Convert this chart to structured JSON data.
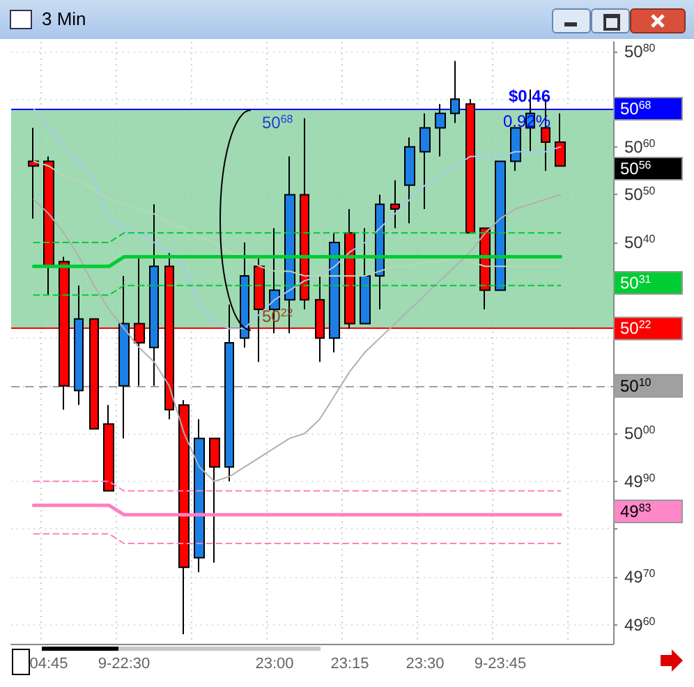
{
  "chart_data": {
    "type": "candlestick",
    "title": "3 Min",
    "categories": [
      null,
      null,
      "04:45",
      null,
      null,
      null,
      null,
      "9-22:30",
      null,
      null,
      null,
      null,
      null,
      null,
      null,
      null,
      null,
      "23:00",
      null,
      null,
      null,
      null,
      "23:15",
      null,
      null,
      null,
      null,
      "23:30",
      null,
      null,
      null,
      null,
      "9-23:45",
      null,
      null,
      null,
      null,
      null,
      null,
      null
    ],
    "ohlc": [
      null,
      [
        5057,
        5064,
        5045,
        5056
      ],
      [
        5057,
        5058,
        5029,
        5035
      ],
      [
        5036,
        5037,
        5005,
        5010
      ],
      [
        5009,
        5031,
        5006,
        5024
      ],
      [
        5024,
        5024,
        5001,
        5001
      ],
      [
        5002,
        5006,
        4988,
        4988
      ],
      [
        5010,
        5033,
        4999,
        5023
      ],
      [
        5023,
        5037,
        5010,
        5019
      ],
      [
        5018,
        5048,
        5010,
        5035
      ],
      [
        5035,
        5038,
        5003,
        5005
      ],
      [
        5006,
        5007,
        4958,
        4972
      ],
      [
        4974,
        5003,
        4971,
        4999
      ],
      [
        4999,
        4999,
        4973,
        4993
      ],
      [
        4993,
        5027,
        4990,
        5019
      ],
      [
        5020,
        5040,
        5018,
        5033
      ],
      [
        5035,
        5037,
        5015,
        5026
      ],
      [
        5026,
        5043,
        5021,
        5030
      ],
      [
        5028,
        5058,
        5021,
        5050
      ],
      [
        5050,
        5066,
        5026,
        5028
      ],
      [
        5028,
        5033,
        5015,
        5020
      ],
      [
        5020,
        5042,
        5017,
        5040
      ],
      [
        5042,
        5047,
        5022,
        5023
      ],
      [
        5023,
        5043,
        5023,
        5033
      ],
      [
        5033,
        5050,
        5026,
        5048
      ],
      [
        5048,
        5053,
        5043,
        5047
      ],
      [
        5052,
        5062,
        5044,
        5060
      ],
      [
        5059,
        5067,
        5047,
        5064
      ],
      [
        5064,
        5069,
        5058,
        5067
      ],
      [
        5067,
        5078,
        5065,
        5070
      ],
      [
        5069,
        5070,
        5042,
        5042
      ],
      [
        5043,
        5043,
        5026,
        5030
      ],
      [
        5030,
        5057,
        5030,
        5057
      ],
      [
        5057,
        5064,
        5055,
        5064
      ],
      [
        5064,
        5072,
        5059,
        5067
      ],
      [
        5064,
        5070,
        5055,
        5061
      ],
      [
        5061,
        5067,
        5056,
        5056
      ],
      null,
      null,
      null
    ],
    "colors": [
      null,
      "#ff0000",
      "#ff0000",
      "#ff0000",
      "#1c7fe6",
      "#ff0000",
      "#ff0000",
      "#1c7fe6",
      "#ff0000",
      "#1c7fe6",
      "#ff0000",
      "#ff0000",
      "#1c7fe6",
      "#ff0000",
      "#1c7fe6",
      "#1c7fe6",
      "#ff0000",
      "#1c7fe6",
      "#1c7fe6",
      "#ff0000",
      "#ff0000",
      "#1c7fe6",
      "#ff0000",
      "#1c7fe6",
      "#1c7fe6",
      "#ff0000",
      "#1c7fe6",
      "#1c7fe6",
      "#1c7fe6",
      "#1c7fe6",
      "#ff0000",
      "#ff0000",
      "#1c7fe6",
      "#1c7fe6",
      "#1c7fe6",
      "#ff0000",
      "#ff0000",
      null,
      null,
      null
    ],
    "series": [
      {
        "type": "line",
        "color": "#a8c8ee",
        "values": [
          null,
          5068,
          5064,
          5060,
          5057,
          5053,
          5045,
          5043,
          5042,
          5040,
          5038,
          5035,
          5027,
          5023,
          5022,
          5022,
          5025,
          5028,
          5030,
          5032,
          5033,
          5035,
          5038,
          5040,
          5043,
          5046,
          5049,
          5052,
          5054,
          5056,
          5058,
          5058,
          5058,
          5059,
          5059,
          5059,
          5060,
          null,
          null,
          null
        ]
      },
      {
        "type": "line",
        "color": "#b8d8b0",
        "values": [
          null,
          5057,
          5056,
          5054,
          5053,
          5051,
          5049,
          5048,
          5047,
          5046,
          5044,
          5043,
          5041,
          5040,
          5038,
          5037,
          5035,
          5034,
          5034,
          5033,
          5033,
          5033,
          5033,
          5033,
          5034,
          5035,
          5035,
          5036,
          5036,
          5037,
          5036,
          5035,
          5035,
          5035,
          5035,
          5035,
          5035,
          null,
          null,
          null
        ]
      },
      {
        "type": "line",
        "color": "#b0b0b0",
        "values": [
          null,
          5049,
          5046,
          5042,
          5037,
          5031,
          5026,
          5022,
          5018,
          5015,
          5010,
          5000,
          4993,
          4990,
          4991,
          4993,
          4995,
          4997,
          4999,
          5000,
          5003,
          5008,
          5013,
          5017,
          5020,
          5023,
          5026,
          5029,
          5032,
          5035,
          5038,
          5042,
          5045,
          5047,
          5048,
          5049,
          5050,
          null,
          null,
          null
        ]
      },
      {
        "type": "line",
        "color": "#00cc33",
        "line_style": "dashed",
        "values": [
          null,
          5040,
          5040,
          5040,
          5040,
          5040,
          5040,
          5042,
          5042,
          5042,
          5042,
          5042,
          5042,
          5042,
          5042,
          5042,
          5042,
          5042,
          5042,
          5042,
          5042,
          5042,
          5042,
          5042,
          5042,
          5042,
          5042,
          5042,
          5042,
          5042,
          5042,
          5042,
          5042,
          5042,
          5042,
          5042,
          5042,
          null,
          null,
          null
        ]
      },
      {
        "type": "line",
        "color": "#00cc33",
        "line_style": "solid",
        "values": [
          null,
          5035,
          5035,
          5035,
          5035,
          5035,
          5035,
          5037,
          5037,
          5037,
          5037,
          5037,
          5037,
          5037,
          5037,
          5037,
          5037,
          5037,
          5037,
          5037,
          5037,
          5037,
          5037,
          5037,
          5037,
          5037,
          5037,
          5037,
          5037,
          5037,
          5037,
          5037,
          5037,
          5037,
          5037,
          5037,
          5037,
          null,
          null,
          null
        ]
      },
      {
        "type": "line",
        "color": "#00cc33",
        "line_style": "dashed",
        "values": [
          null,
          5029,
          5029,
          5029,
          5029,
          5029,
          5029,
          5031,
          5031,
          5031,
          5031,
          5031,
          5031,
          5031,
          5031,
          5031,
          5031,
          5031,
          5031,
          5031,
          5031,
          5031,
          5031,
          5031,
          5031,
          5031,
          5031,
          5031,
          5031,
          5031,
          5031,
          5031,
          5031,
          5031,
          5031,
          5031,
          5031,
          null,
          null,
          null
        ]
      },
      {
        "type": "line",
        "color": "#ff80c0",
        "line_style": "dashed",
        "values": [
          null,
          4990,
          4990,
          4990,
          4990,
          4990,
          4990,
          4988,
          4988,
          4988,
          4988,
          4988,
          4988,
          4988,
          4988,
          4988,
          4988,
          4988,
          4988,
          4988,
          4988,
          4988,
          4988,
          4988,
          4988,
          4988,
          4988,
          4988,
          4988,
          4988,
          4988,
          4988,
          4988,
          4988,
          4988,
          4988,
          4988,
          null,
          null,
          null
        ]
      },
      {
        "type": "line",
        "color": "#ff80c0",
        "line_style": "solid",
        "values": [
          null,
          4985,
          4985,
          4985,
          4985,
          4985,
          4985,
          4983,
          4983,
          4983,
          4983,
          4983,
          4983,
          4983,
          4983,
          4983,
          4983,
          4983,
          4983,
          4983,
          4983,
          4983,
          4983,
          4983,
          4983,
          4983,
          4983,
          4983,
          4983,
          4983,
          4983,
          4983,
          4983,
          4983,
          4983,
          4983,
          4983,
          null,
          null,
          null
        ]
      },
      {
        "type": "line",
        "color": "#ff80c0",
        "line_style": "dashed",
        "values": [
          null,
          4979,
          4979,
          4979,
          4979,
          4979,
          4979,
          4977,
          4977,
          4977,
          4977,
          4977,
          4977,
          4977,
          4977,
          4977,
          4977,
          4977,
          4977,
          4977,
          4977,
          4977,
          4977,
          4977,
          4977,
          4977,
          4977,
          4977,
          4977,
          4977,
          4977,
          4977,
          4977,
          4977,
          4977,
          4977,
          4977,
          null,
          null,
          null
        ]
      }
    ],
    "ylim": [
      4956,
      5082
    ],
    "yticks": [
      4960,
      4970,
      {
        "value": 4980,
        "label": null
      },
      4990,
      5000,
      5010,
      {
        "value": 5020,
        "label": null
      },
      5040,
      5050,
      5060,
      {
        "value": 5070,
        "label": null
      },
      5080
    ],
    "ref_lines": [
      {
        "axis": "y",
        "value": 5068,
        "label": "5068",
        "color": "#0000ff",
        "line_style": "solid"
      },
      {
        "axis": "y",
        "value": 5022,
        "label": "5022",
        "color": "#ff0000",
        "line_style": "solid"
      },
      {
        "axis": "y",
        "value": 5010,
        "label": "5010",
        "color": "#a0a0a0",
        "line_style": "dashed"
      }
    ],
    "bands": [
      {
        "axis": "y",
        "from": 5022,
        "to": 5068,
        "color": "#8fd3a6"
      }
    ],
    "annotations": [
      "$0.46",
      "0.92%",
      "5068",
      "5022",
      "5056",
      "5031",
      "4983"
    ],
    "grid": true
  }
}
